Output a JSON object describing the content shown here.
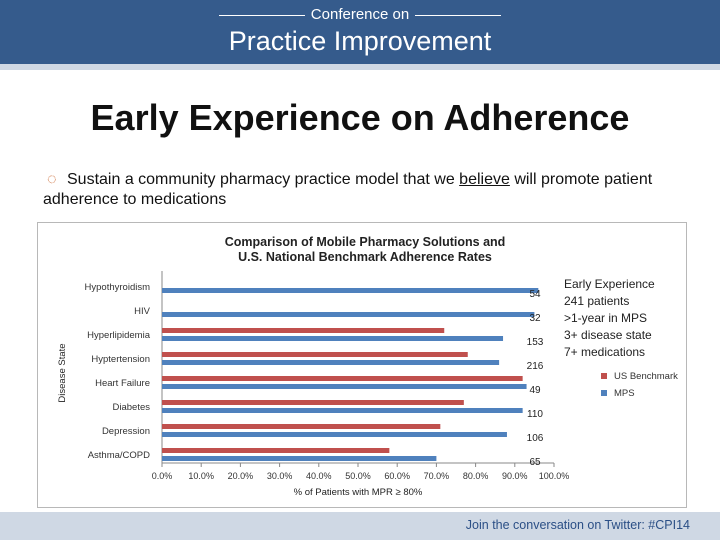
{
  "banner": {
    "top_text": "Conference on",
    "main_text": "Practice Improvement"
  },
  "slide": {
    "title": "Early Experience on Adherence",
    "bullet_prefix": "Sustain a community pharmacy practice model that we ",
    "bullet_emphasis": "believe",
    "bullet_suffix": " will promote patient adherence to medications",
    "bullet_icon": "ring-bullet-icon"
  },
  "notes": [
    "Early Experience",
    "241 patients",
    ">1-year in MPS",
    "3+ disease state",
    "7+ medications"
  ],
  "footer": {
    "text": "Join the conversation on Twitter: #CPI14"
  },
  "colors": {
    "banner": "#355b8c",
    "us_benchmark": "#c0504d",
    "mps": "#4f81bd"
  },
  "chart_data": {
    "type": "bar",
    "orientation": "horizontal",
    "title": [
      "Comparison of Mobile Pharmacy Solutions and",
      "U.S. National Benchmark Adherence Rates"
    ],
    "xlabel": "% of Patients with MPR ≥ 80%",
    "ylabel": "Disease State",
    "xlim": [
      0,
      100
    ],
    "xticks": [
      "0.0%",
      "10.0%",
      "20.0%",
      "30.0%",
      "40.0%",
      "50.0%",
      "60.0%",
      "70.0%",
      "80.0%",
      "90.0%",
      "100.0%"
    ],
    "categories": [
      "Hypothyroidism",
      "HIV",
      "Hyperlipidemia",
      "Hyptertension",
      "Heart Failure",
      "Diabetes",
      "Depression",
      "Asthma/COPD"
    ],
    "patient_counts": [
      "54",
      "32",
      "153",
      "216",
      "49",
      "110",
      "106",
      "65"
    ],
    "series": [
      {
        "name": "US Benchmark",
        "values": [
          null,
          null,
          72,
          78,
          92,
          77,
          71,
          58
        ]
      },
      {
        "name": "MPS",
        "values": [
          96,
          95,
          87,
          86,
          93,
          92,
          88,
          70
        ]
      }
    ],
    "legend_position": "right",
    "grid": false
  }
}
